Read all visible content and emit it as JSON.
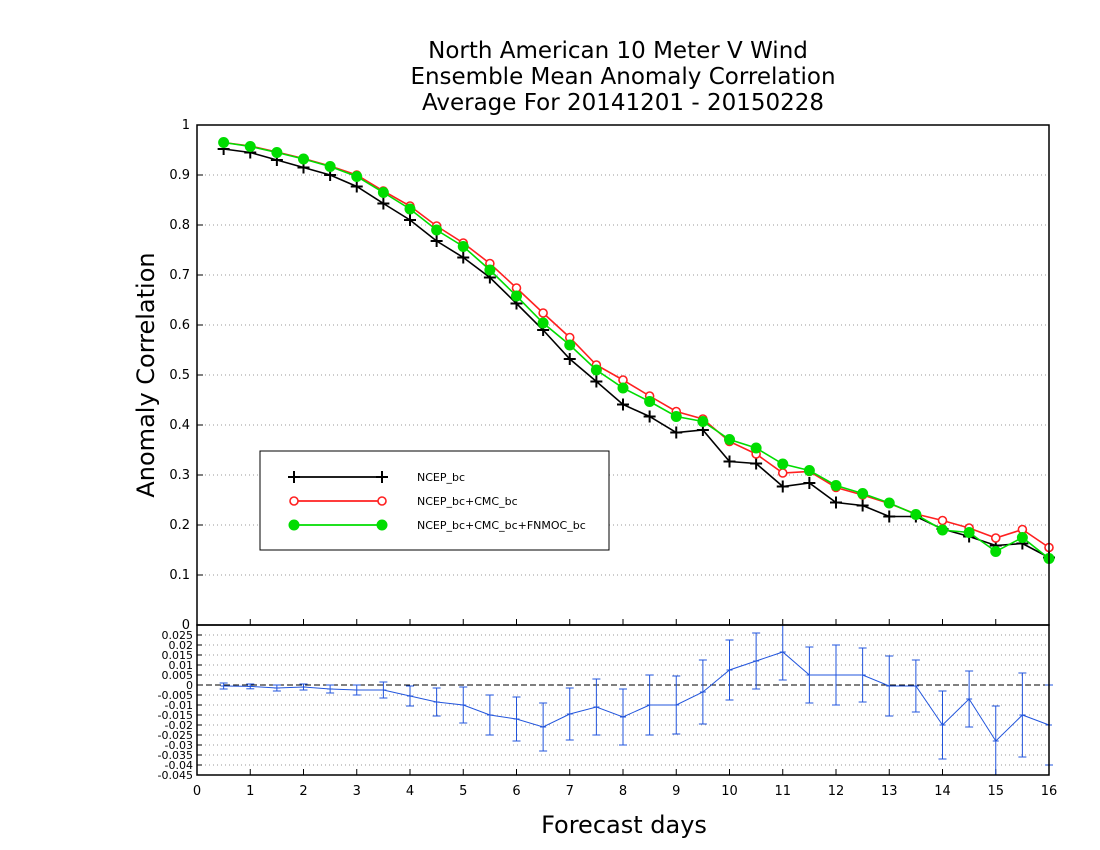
{
  "chart_data": {
    "type": "line",
    "title": [
      "North American 10 Meter V Wind",
      "Ensemble Mean Anomaly Correlation",
      "Average For 20141201 - 20150228"
    ],
    "xlabel": "Forecast days",
    "ylabel": "Anomaly Correlation",
    "xlim": [
      0,
      16
    ],
    "ylim": [
      0,
      1
    ],
    "x_ticks": [
      "0",
      "1",
      "2",
      "3",
      "4",
      "5",
      "6",
      "7",
      "8",
      "9",
      "10",
      "11",
      "12",
      "13",
      "14",
      "15",
      "16"
    ],
    "y_ticks": [
      "0",
      "0.1",
      "0.2",
      "0.3",
      "0.4",
      "0.5",
      "0.6",
      "0.7",
      "0.8",
      "0.9",
      "1"
    ],
    "grid": true,
    "legend_position": "lower-left",
    "x": [
      0.5,
      1,
      1.5,
      2,
      2.5,
      3,
      3.5,
      4,
      4.5,
      5,
      5.5,
      6,
      6.5,
      7,
      7.5,
      8,
      8.5,
      9,
      9.5,
      10,
      10.5,
      11,
      11.5,
      12,
      12.5,
      13,
      13.5,
      14,
      14.5,
      15,
      15.5,
      16
    ],
    "series": [
      {
        "name": "NCEP_bc",
        "color": "#000000",
        "marker": "plus",
        "values": [
          0.952,
          0.945,
          0.93,
          0.915,
          0.9,
          0.877,
          0.843,
          0.81,
          0.768,
          0.735,
          0.695,
          0.643,
          0.59,
          0.532,
          0.487,
          0.441,
          0.417,
          0.385,
          0.39,
          0.327,
          0.323,
          0.277,
          0.284,
          0.245,
          0.239,
          0.217,
          0.217,
          0.192,
          0.177,
          0.159,
          0.163,
          0.135
        ]
      },
      {
        "name": "NCEP_bc+CMC_bc",
        "color": "#ff2020",
        "marker": "open-circle",
        "values": [
          0.965,
          0.958,
          0.946,
          0.933,
          0.918,
          0.9,
          0.868,
          0.838,
          0.798,
          0.764,
          0.723,
          0.674,
          0.624,
          0.575,
          0.52,
          0.49,
          0.458,
          0.427,
          0.412,
          0.367,
          0.342,
          0.304,
          0.307,
          0.275,
          0.26,
          0.243,
          0.222,
          0.209,
          0.194,
          0.174,
          0.191,
          0.155
        ]
      },
      {
        "name": "NCEP_bc+CMC_bc+FNMOC_bc",
        "color": "#00dd00",
        "marker": "filled-circle",
        "values": [
          0.965,
          0.957,
          0.945,
          0.932,
          0.917,
          0.897,
          0.865,
          0.832,
          0.79,
          0.757,
          0.71,
          0.658,
          0.604,
          0.56,
          0.51,
          0.474,
          0.447,
          0.417,
          0.407,
          0.371,
          0.354,
          0.322,
          0.309,
          0.279,
          0.263,
          0.244,
          0.221,
          0.19,
          0.185,
          0.147,
          0.175,
          0.133
        ]
      }
    ],
    "difference_panel": {
      "ylim": [
        -0.045,
        0.03
      ],
      "y_ticks": [
        "-0.045",
        "-0.04",
        "-0.035",
        "-0.03",
        "-0.025",
        "-0.02",
        "-0.015",
        "-0.01",
        "-0.005",
        "0",
        "0.005",
        "0.01",
        "0.015",
        "0.02",
        "0.025"
      ],
      "color": "#2255dd",
      "values": [
        -0.0005,
        -0.0007,
        -0.0015,
        -0.001,
        -0.002,
        -0.0025,
        -0.0025,
        -0.0055,
        -0.0085,
        -0.01,
        -0.015,
        -0.017,
        -0.021,
        -0.0145,
        -0.011,
        -0.016,
        -0.01,
        -0.01,
        -0.0035,
        0.0075,
        0.012,
        0.0165,
        0.005,
        0.005,
        0.005,
        -0.0005,
        -0.0005,
        -0.02,
        -0.007,
        -0.028,
        -0.015,
        -0.02
      ],
      "error": [
        0.0015,
        0.0012,
        0.0015,
        0.0015,
        0.002,
        0.0025,
        0.004,
        0.005,
        0.007,
        0.009,
        0.01,
        0.011,
        0.012,
        0.013,
        0.014,
        0.014,
        0.015,
        0.0145,
        0.016,
        0.015,
        0.014,
        0.014,
        0.014,
        0.015,
        0.0135,
        0.015,
        0.013,
        0.017,
        0.014,
        0.0175,
        0.021,
        0.02
      ]
    }
  }
}
